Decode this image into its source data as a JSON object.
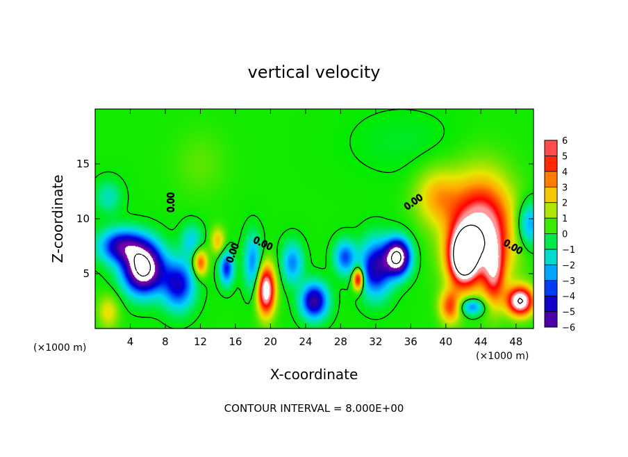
{
  "chart_data": {
    "type": "heatmap",
    "title": "vertical velocity",
    "xlabel": "X-coordinate",
    "ylabel": "Z-coordinate",
    "x_unit_note": "(×1000 m)",
    "footer": "CONTOUR INTERVAL = 8.000E+00",
    "xlim": [
      0,
      50
    ],
    "ylim": [
      0,
      20
    ],
    "x_ticks": [
      4,
      8,
      12,
      16,
      20,
      24,
      28,
      32,
      36,
      40,
      44,
      48
    ],
    "y_ticks": [
      5,
      10,
      15
    ],
    "contour_label": "0.00",
    "colorbar": {
      "ticks": [
        6,
        5,
        4,
        3,
        2,
        1,
        0,
        -1,
        -2,
        -3,
        -4,
        -5,
        -6
      ],
      "range": [
        -6,
        6
      ]
    },
    "features": [
      {
        "x": 44.0,
        "z": 9.0,
        "w": 7.0,
        "sx": 3.5,
        "sz": 4.5
      },
      {
        "x": 42.0,
        "z": 6.5,
        "w": 9.0,
        "sx": 1.6,
        "sz": 2.4
      },
      {
        "x": 48.5,
        "z": 2.5,
        "w": 8.0,
        "sx": 1.5,
        "sz": 1.3
      },
      {
        "x": 40.5,
        "z": 2.0,
        "w": 4.0,
        "sx": 1.2,
        "sz": 1.5
      },
      {
        "x": 45.5,
        "z": 5.0,
        "w": 4.0,
        "sx": 1.2,
        "sz": 3.0
      },
      {
        "x": 39.0,
        "z": 12.0,
        "w": 2.5,
        "sx": 2.5,
        "sz": 2.5
      },
      {
        "x": 43.0,
        "z": 2.0,
        "w": -3.5,
        "sx": 1.5,
        "sz": 0.8
      },
      {
        "x": 5.5,
        "z": 5.5,
        "w": -9.0,
        "sx": 2.2,
        "sz": 2.2
      },
      {
        "x": 3.0,
        "z": 7.5,
        "w": -5.0,
        "sx": 2.5,
        "sz": 1.5
      },
      {
        "x": 9.5,
        "z": 4.0,
        "w": -4.5,
        "sx": 1.8,
        "sz": 2.2
      },
      {
        "x": 1.5,
        "z": 1.5,
        "w": 2.0,
        "sx": 1.2,
        "sz": 1.5
      },
      {
        "x": 34.5,
        "z": 6.5,
        "w": -8.5,
        "sx": 1.4,
        "sz": 1.6
      },
      {
        "x": 32.0,
        "z": 5.5,
        "w": -5.0,
        "sx": 1.8,
        "sz": 2.5
      },
      {
        "x": 30.0,
        "z": 4.5,
        "w": 6.0,
        "sx": 0.6,
        "sz": 1.0
      },
      {
        "x": 28.5,
        "z": 6.5,
        "w": -3.5,
        "sx": 1.2,
        "sz": 1.5
      },
      {
        "x": 25.0,
        "z": 2.5,
        "w": -5.5,
        "sx": 1.5,
        "sz": 1.6
      },
      {
        "x": 22.5,
        "z": 6.0,
        "w": -3.0,
        "sx": 1.2,
        "sz": 1.8
      },
      {
        "x": 19.5,
        "z": 3.5,
        "w": 7.5,
        "sx": 1.0,
        "sz": 2.2
      },
      {
        "x": 18.0,
        "z": 6.0,
        "w": -3.0,
        "sx": 1.0,
        "sz": 2.5
      },
      {
        "x": 15.0,
        "z": 5.5,
        "w": -4.0,
        "sx": 0.8,
        "sz": 1.5
      },
      {
        "x": 12.0,
        "z": 6.0,
        "w": 4.0,
        "sx": 0.8,
        "sz": 1.2
      },
      {
        "x": 14.0,
        "z": 8.0,
        "w": 2.5,
        "sx": 0.8,
        "sz": 1.2
      },
      {
        "x": 11.0,
        "z": 8.0,
        "w": -2.0,
        "sx": 1.2,
        "sz": 1.5
      },
      {
        "x": 49.5,
        "z": 9.5,
        "w": -3.0,
        "sx": 1.5,
        "sz": 2.0
      },
      {
        "x": 1.5,
        "z": 12.0,
        "w": -1.5,
        "sx": 1.5,
        "sz": 1.5
      },
      {
        "x": 12.0,
        "z": 15.0,
        "w": 0.6,
        "sx": 3.0,
        "sz": 3.0
      },
      {
        "x": 35.0,
        "z": 17.0,
        "w": -0.4,
        "sx": 6.0,
        "sz": 3.0
      }
    ]
  }
}
